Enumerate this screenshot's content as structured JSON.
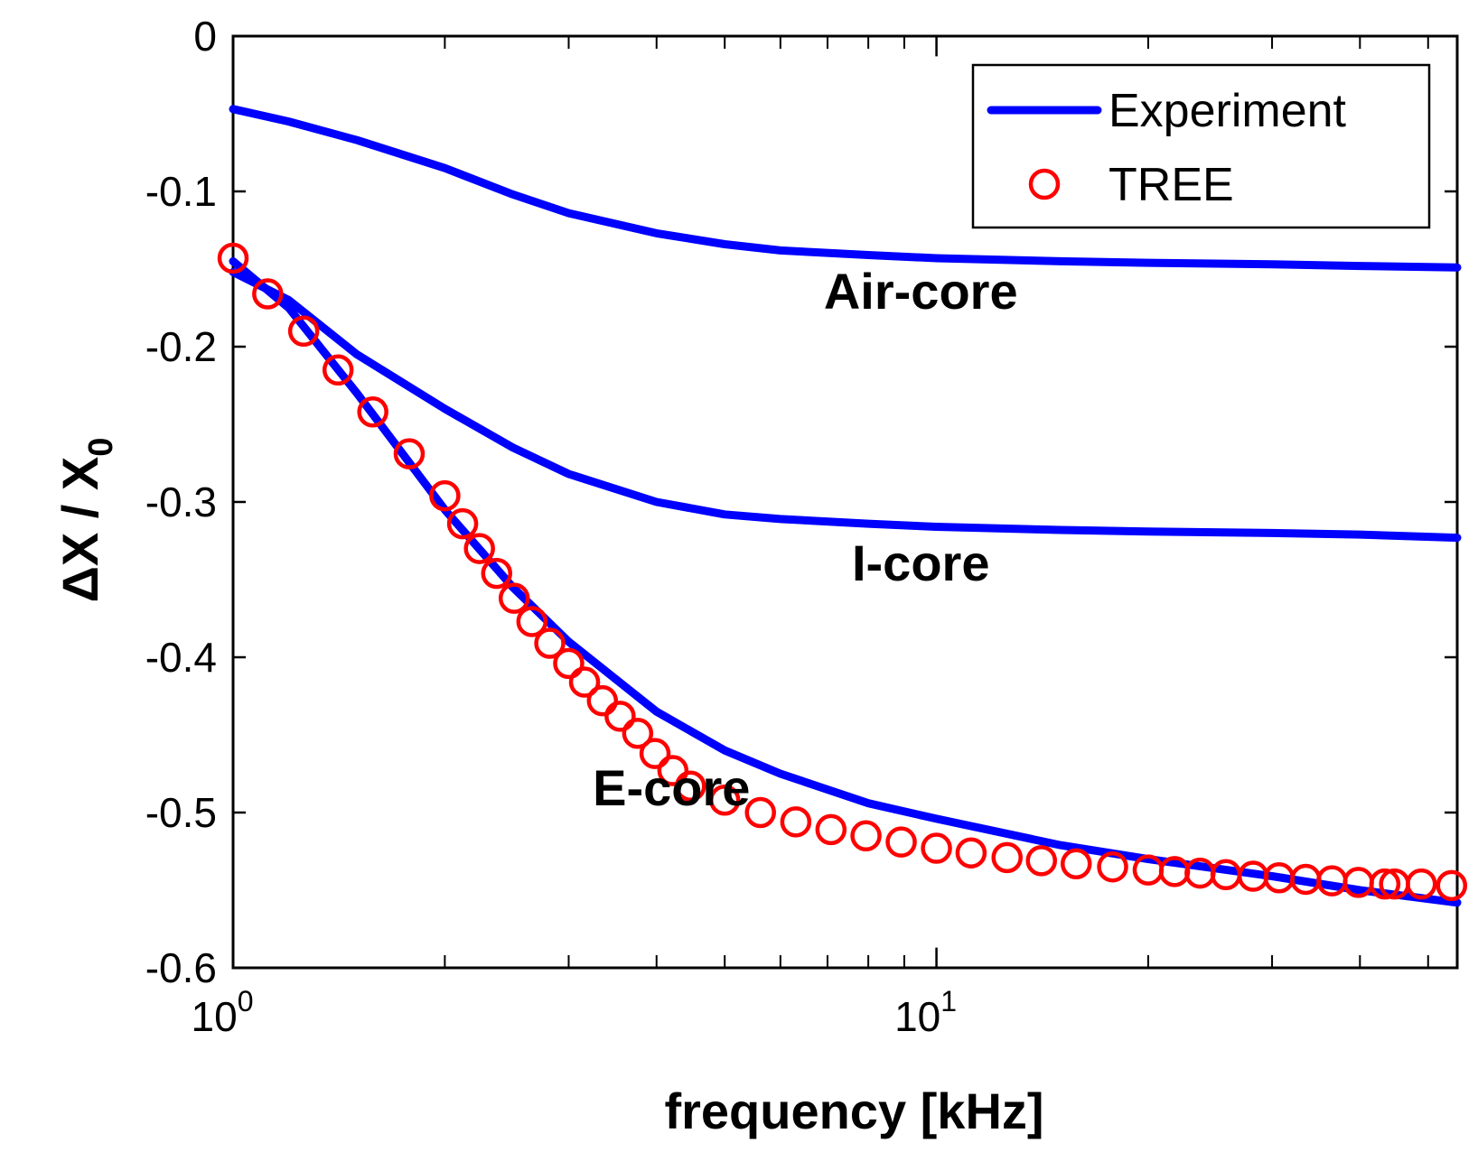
{
  "chart_data": {
    "type": "line",
    "title": "",
    "xlabel": "frequency [kHz]",
    "ylabel": "ΔX / X",
    "ylabel_subscript": "0",
    "x_scale": "log",
    "xlim": [
      1,
      55
    ],
    "ylim": [
      -0.6,
      0
    ],
    "x_ticks": [
      {
        "value": 1,
        "base": "10",
        "exp": "0"
      },
      {
        "value": 10,
        "base": "10",
        "exp": "1"
      }
    ],
    "y_ticks": [
      {
        "value": 0,
        "label": "0"
      },
      {
        "value": -0.1,
        "label": "-0.1"
      },
      {
        "value": -0.2,
        "label": "-0.2"
      },
      {
        "value": -0.3,
        "label": "-0.3"
      },
      {
        "value": -0.4,
        "label": "-0.4"
      },
      {
        "value": -0.5,
        "label": "-0.5"
      },
      {
        "value": -0.6,
        "label": "-0.6"
      }
    ],
    "grid": false,
    "colors": {
      "experiment": "#0000ff",
      "tree": "#ff0000",
      "axis": "#000000"
    },
    "annotations": [
      {
        "text": "Air-core",
        "x": 9.5,
        "y": -0.165
      },
      {
        "text": "I-core",
        "x": 9.5,
        "y": -0.34
      },
      {
        "text": "E-core",
        "x": 4.2,
        "y": -0.485
      }
    ],
    "legend": {
      "position": "top-right",
      "entries": [
        {
          "label": "Experiment",
          "marker": "line"
        },
        {
          "label": "TREE",
          "marker": "circle"
        }
      ]
    },
    "series": [
      {
        "name": "Experiment",
        "group": "Air-core",
        "style": "line",
        "x": [
          1,
          1.2,
          1.5,
          2,
          2.5,
          3,
          4,
          5,
          6,
          8,
          10,
          15,
          20,
          30,
          40,
          55
        ],
        "y": [
          -0.047,
          -0.055,
          -0.067,
          -0.085,
          -0.102,
          -0.114,
          -0.127,
          -0.134,
          -0.138,
          -0.141,
          -0.143,
          -0.145,
          -0.146,
          -0.147,
          -0.148,
          -0.149
        ]
      },
      {
        "name": "Experiment",
        "group": "I-core",
        "style": "line",
        "x": [
          1,
          1.2,
          1.5,
          2,
          2.5,
          3,
          4,
          5,
          6,
          8,
          10,
          15,
          20,
          30,
          40,
          55
        ],
        "y": [
          -0.152,
          -0.17,
          -0.205,
          -0.24,
          -0.265,
          -0.282,
          -0.3,
          -0.308,
          -0.311,
          -0.314,
          -0.316,
          -0.318,
          -0.319,
          -0.32,
          -0.321,
          -0.323
        ]
      },
      {
        "name": "Experiment",
        "group": "E-core",
        "style": "line",
        "x": [
          1,
          1.2,
          1.5,
          2,
          2.5,
          3,
          4,
          5,
          6,
          8,
          10,
          15,
          20,
          30,
          40,
          55
        ],
        "y": [
          -0.145,
          -0.175,
          -0.23,
          -0.305,
          -0.355,
          -0.39,
          -0.435,
          -0.46,
          -0.475,
          -0.494,
          -0.504,
          -0.521,
          -0.53,
          -0.541,
          -0.55,
          -0.558
        ]
      },
      {
        "name": "TREE",
        "group": "E-core",
        "style": "markers",
        "x": [
          1,
          1.12,
          1.26,
          1.41,
          1.58,
          1.78,
          2,
          2.12,
          2.24,
          2.37,
          2.51,
          2.66,
          2.82,
          3,
          3.16,
          3.35,
          3.55,
          3.76,
          3.98,
          4.22,
          4.47,
          5,
          5.62,
          6.31,
          7.08,
          7.94,
          8.91,
          10,
          11.2,
          12.6,
          14.1,
          15.8,
          17.8,
          20,
          21.8,
          23.7,
          25.8,
          28.2,
          30.7,
          33.5,
          36.5,
          39.8,
          43.4,
          44.8,
          48.9,
          54
        ],
        "y": [
          -0.143,
          -0.166,
          -0.19,
          -0.215,
          -0.242,
          -0.269,
          -0.296,
          -0.314,
          -0.33,
          -0.346,
          -0.362,
          -0.377,
          -0.391,
          -0.404,
          -0.416,
          -0.428,
          -0.438,
          -0.449,
          -0.462,
          -0.473,
          -0.483,
          -0.492,
          -0.5,
          -0.506,
          -0.511,
          -0.515,
          -0.519,
          -0.523,
          -0.526,
          -0.529,
          -0.531,
          -0.533,
          -0.535,
          -0.537,
          -0.538,
          -0.539,
          -0.54,
          -0.541,
          -0.542,
          -0.543,
          -0.544,
          -0.545,
          -0.546,
          -0.546,
          -0.546,
          -0.547
        ]
      }
    ]
  }
}
